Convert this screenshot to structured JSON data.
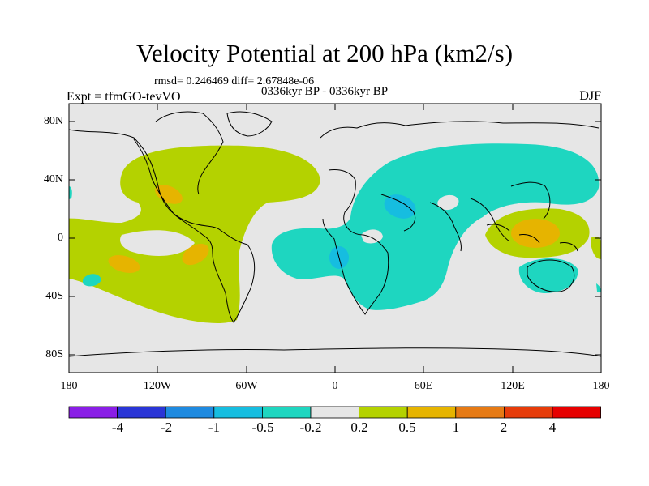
{
  "title": "Velocity Potential at 200 hPa (km2/s)",
  "stats_line": "rmsd= 0.246469 diff= 2.67848e-06",
  "period_line": "0336kyr BP - 0336kyr BP",
  "left_label": "Expt = tfmGO-tevVO",
  "right_label": "DJF",
  "lat_labels": [
    "80N",
    "40N",
    "0",
    "40S",
    "80S"
  ],
  "lon_labels": [
    "180",
    "120W",
    "60W",
    "0",
    "60E",
    "120E",
    "180"
  ],
  "colorbar": {
    "levels": [
      "-4",
      "-2",
      "-1",
      "-0.5",
      "-0.2",
      "0.2",
      "0.5",
      "1",
      "2",
      "4"
    ],
    "colors": [
      "#8a1ee6",
      "#2a35d6",
      "#1e8ae0",
      "#16bde0",
      "#1ed6c0",
      "#e6e6e6",
      "#b4d200",
      "#e6b400",
      "#e67a14",
      "#e63c0a",
      "#e60000"
    ]
  },
  "map_colors": {
    "background": "#e6e6e6",
    "coast": "#000000"
  }
}
